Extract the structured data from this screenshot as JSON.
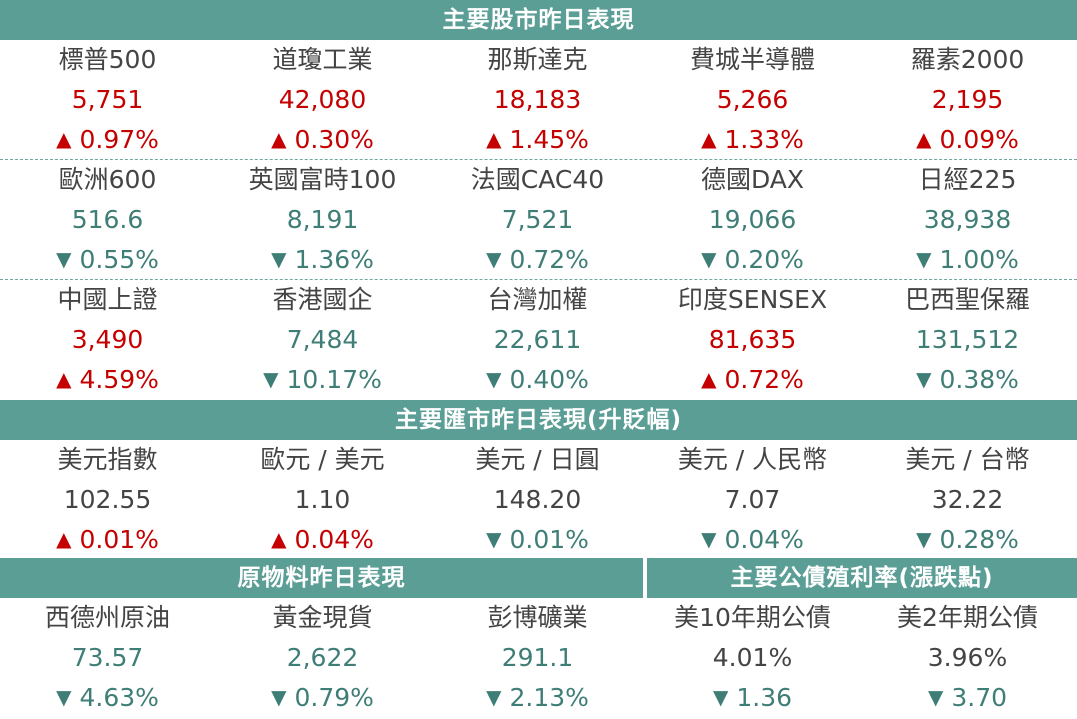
{
  "colors": {
    "header_bg": "#5a9e95",
    "up": "#c40000",
    "down": "#3f7e76",
    "text": "#444444"
  },
  "headers": {
    "stocks": "主要股市昨日表現",
    "fx": "主要匯市昨日表現(升貶幅)",
    "commodities": "原物料昨日表現",
    "bonds": "主要公債殖利率(漲跌點)"
  },
  "stocks": [
    [
      {
        "name": "標普500",
        "value": "5,751",
        "arrow": "▲",
        "change": "0.97%",
        "dir": "up"
      },
      {
        "name": "道瓊工業",
        "value": "42,080",
        "arrow": "▲",
        "change": "0.30%",
        "dir": "up"
      },
      {
        "name": "那斯達克",
        "value": "18,183",
        "arrow": "▲",
        "change": "1.45%",
        "dir": "up"
      },
      {
        "name": "費城半導體",
        "value": "5,266",
        "arrow": "▲",
        "change": "1.33%",
        "dir": "up"
      },
      {
        "name": "羅素2000",
        "value": "2,195",
        "arrow": "▲",
        "change": "0.09%",
        "dir": "up"
      }
    ],
    [
      {
        "name": "歐洲600",
        "value": "516.6",
        "arrow": "▼",
        "change": "0.55%",
        "dir": "down"
      },
      {
        "name": "英國富時100",
        "value": "8,191",
        "arrow": "▼",
        "change": "1.36%",
        "dir": "down"
      },
      {
        "name": "法國CAC40",
        "value": "7,521",
        "arrow": "▼",
        "change": "0.72%",
        "dir": "down"
      },
      {
        "name": "德國DAX",
        "value": "19,066",
        "arrow": "▼",
        "change": "0.20%",
        "dir": "down"
      },
      {
        "name": "日經225",
        "value": "38,938",
        "arrow": "▼",
        "change": "1.00%",
        "dir": "down"
      }
    ],
    [
      {
        "name": "中國上證",
        "value": "3,490",
        "arrow": "▲",
        "change": "4.59%",
        "dir": "up"
      },
      {
        "name": "香港國企",
        "value": "7,484",
        "arrow": "▼",
        "change": "10.17%",
        "dir": "down"
      },
      {
        "name": "台灣加權",
        "value": "22,611",
        "arrow": "▼",
        "change": "0.40%",
        "dir": "down"
      },
      {
        "name": "印度SENSEX",
        "value": "81,635",
        "arrow": "▲",
        "change": "0.72%",
        "dir": "up"
      },
      {
        "name": "巴西聖保羅",
        "value": "131,512",
        "arrow": "▼",
        "change": "0.38%",
        "dir": "down"
      }
    ]
  ],
  "fx": [
    {
      "name": "美元指數",
      "value": "102.55",
      "arrow": "▲",
      "change": "0.01%",
      "dir": "up"
    },
    {
      "name": "歐元 / 美元",
      "value": "1.10",
      "arrow": "▲",
      "change": "0.04%",
      "dir": "up"
    },
    {
      "name": "美元 / 日圓",
      "value": "148.20",
      "arrow": "▼",
      "change": "0.01%",
      "dir": "down"
    },
    {
      "name": "美元 / 人民幣",
      "value": "7.07",
      "arrow": "▼",
      "change": "0.04%",
      "dir": "down"
    },
    {
      "name": "美元 / 台幣",
      "value": "32.22",
      "arrow": "▼",
      "change": "0.28%",
      "dir": "down"
    }
  ],
  "commodities": [
    {
      "name": "西德州原油",
      "value": "73.57",
      "arrow": "▼",
      "change": "4.63%",
      "dir": "down"
    },
    {
      "name": "黃金現貨",
      "value": "2,622",
      "arrow": "▼",
      "change": "0.79%",
      "dir": "down"
    },
    {
      "name": "彭博礦業",
      "value": "291.1",
      "arrow": "▼",
      "change": "2.13%",
      "dir": "down"
    }
  ],
  "bonds": [
    {
      "name": "美10年期公債",
      "value": "4.01%",
      "arrow": "▼",
      "change": "1.36",
      "dir": "down"
    },
    {
      "name": "美2年期公債",
      "value": "3.96%",
      "arrow": "▼",
      "change": "3.70",
      "dir": "down"
    }
  ]
}
